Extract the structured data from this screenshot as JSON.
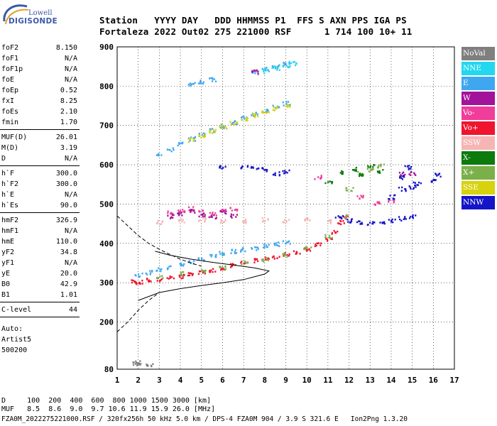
{
  "logo": {
    "line1": "Lowell",
    "line2": "DIGISONDE"
  },
  "header": {
    "row1": [
      "Station",
      "YYYY",
      "DAY",
      "DDD",
      "HHMMSS",
      "P1",
      "FFS",
      "S",
      "AXN",
      "PPS",
      "IGA",
      "PS"
    ],
    "row2": [
      "Fortaleza",
      "2022",
      "Out02",
      "275",
      "221000",
      "RSF",
      "1",
      "714",
      "100",
      "10+",
      "11"
    ]
  },
  "params": {
    "group1": [
      {
        "label": "foF2",
        "value": "8.150"
      },
      {
        "label": "foF1",
        "value": "N/A"
      },
      {
        "label": "foF1p",
        "value": "N/A"
      },
      {
        "label": "foE",
        "value": "N/A"
      },
      {
        "label": "foEp",
        "value": "0.52"
      },
      {
        "label": "fxI",
        "value": "8.25"
      },
      {
        "label": "foEs",
        "value": "2.10"
      },
      {
        "label": "fmin",
        "value": "1.70"
      }
    ],
    "group2": [
      {
        "label": "MUF(D)",
        "value": "26.01"
      },
      {
        "label": "M(D)",
        "value": "3.19"
      },
      {
        "label": "D",
        "value": "N/A"
      }
    ],
    "group3": [
      {
        "label": "h`F",
        "value": "300.0"
      },
      {
        "label": "h`F2",
        "value": "300.0"
      },
      {
        "label": "h`E",
        "value": "N/A"
      },
      {
        "label": "h`Es",
        "value": "90.0"
      }
    ],
    "group4": [
      {
        "label": "hmF2",
        "value": "326.9"
      },
      {
        "label": "hmF1",
        "value": "N/A"
      },
      {
        "label": "hmE",
        "value": "110.0"
      },
      {
        "label": "yF2",
        "value": "34.8"
      },
      {
        "label": "yF1",
        "value": "N/A"
      },
      {
        "label": "yE",
        "value": "20.0"
      },
      {
        "label": "B0",
        "value": "42.9"
      },
      {
        "label": "B1",
        "value": "1.01"
      }
    ],
    "group5": [
      {
        "label": "C-level",
        "value": "44"
      }
    ],
    "auto": [
      "Auto:",
      "Artist5",
      "500200"
    ]
  },
  "legend": [
    {
      "label": "NoVal",
      "color": "#7f7f7f"
    },
    {
      "label": "NNE",
      "color": "#22d8f0"
    },
    {
      "label": "E",
      "color": "#3fa7f0"
    },
    {
      "label": "W",
      "color": "#a3129a"
    },
    {
      "label": "Vo-",
      "color": "#f03c9a"
    },
    {
      "label": "Vo+",
      "color": "#f0142e"
    },
    {
      "label": "SSW",
      "color": "#f5b5b5"
    },
    {
      "label": "X-",
      "color": "#0c7a0c"
    },
    {
      "label": "X+",
      "color": "#7ab04a"
    },
    {
      "label": "SSE",
      "color": "#d7d20c"
    },
    {
      "label": "NNW",
      "color": "#1414c8"
    }
  ],
  "footer": {
    "line1": "D     100  200  400  600  800 1000 1500 3000 [km]",
    "line2": "MUF   8.5  8.6  9.0  9.7 10.6 11.9 15.9 26.0 [MHz]",
    "line3": "FZA0M_2022275221000.RSF / 320fx256h 50 kHz 5.0 km / DPS-4 FZA0M 904 / 3.9 S 321.6 E   Ion2Png 1.3.20"
  },
  "chart_data": {
    "type": "scatter",
    "xlim": [
      1,
      17
    ],
    "ylim": [
      80,
      900
    ],
    "x_ticks": [
      1,
      2,
      3,
      4,
      5,
      6,
      7,
      8,
      9,
      10,
      11,
      12,
      13,
      14,
      15,
      16,
      17
    ],
    "y_ticks": [
      80,
      200,
      300,
      400,
      500,
      600,
      700,
      800,
      900
    ],
    "grid": true,
    "series": [
      {
        "name": "Vo+",
        "color": "#f0142e",
        "points": [
          [
            1.8,
            305
          ],
          [
            2.0,
            303
          ],
          [
            2.5,
            308
          ],
          [
            3.0,
            310
          ],
          [
            3.5,
            315
          ],
          [
            4.0,
            318
          ],
          [
            4.5,
            322
          ],
          [
            5.0,
            328
          ],
          [
            5.5,
            334
          ],
          [
            6.0,
            340
          ],
          [
            6.5,
            346
          ],
          [
            7.0,
            352
          ],
          [
            7.5,
            358
          ],
          [
            8.0,
            362
          ],
          [
            8.5,
            368
          ],
          [
            9.0,
            374
          ],
          [
            9.5,
            380
          ],
          [
            10.0,
            388
          ],
          [
            10.5,
            398
          ],
          [
            11.0,
            412
          ],
          [
            11.3,
            430
          ],
          [
            11.6,
            455
          ],
          [
            11.8,
            470
          ]
        ]
      },
      {
        "name": "E",
        "color": "#3fa7f0",
        "points": [
          [
            2.0,
            322
          ],
          [
            2.5,
            328
          ],
          [
            3.0,
            335
          ],
          [
            3.5,
            340
          ],
          [
            4.0,
            348
          ],
          [
            4.5,
            355
          ],
          [
            5.0,
            362
          ],
          [
            5.5,
            370
          ],
          [
            6.0,
            376
          ],
          [
            6.5,
            382
          ],
          [
            7.0,
            386
          ],
          [
            7.5,
            390
          ],
          [
            8.0,
            395
          ],
          [
            8.5,
            400
          ],
          [
            9.0,
            405
          ],
          [
            3.0,
            630
          ],
          [
            3.5,
            640
          ],
          [
            4.0,
            655
          ],
          [
            4.5,
            668
          ],
          [
            5.0,
            678
          ],
          [
            5.5,
            690
          ],
          [
            6.0,
            700
          ],
          [
            6.5,
            710
          ],
          [
            7.0,
            720
          ],
          [
            7.5,
            730
          ],
          [
            8.0,
            740
          ],
          [
            8.5,
            750
          ],
          [
            9.0,
            758
          ],
          [
            4.5,
            808
          ],
          [
            5.0,
            812
          ],
          [
            5.5,
            818
          ],
          [
            7.5,
            838
          ],
          [
            8.0,
            845
          ],
          [
            8.5,
            852
          ],
          [
            9.0,
            858
          ]
        ]
      },
      {
        "name": "NNE",
        "color": "#22d8f0",
        "points": [
          [
            8.0,
            840
          ],
          [
            8.5,
            848
          ],
          [
            9.0,
            855
          ],
          [
            9.3,
            860
          ]
        ]
      },
      {
        "name": "SSE",
        "color": "#d7d20c",
        "points": [
          [
            4.5,
            665
          ],
          [
            5.0,
            675
          ],
          [
            5.5,
            688
          ],
          [
            6.0,
            698
          ],
          [
            6.5,
            708
          ],
          [
            7.0,
            718
          ],
          [
            7.5,
            728
          ],
          [
            8.0,
            738
          ],
          [
            8.5,
            745
          ],
          [
            9.0,
            752
          ]
        ]
      },
      {
        "name": "X+",
        "color": "#7ab04a",
        "points": [
          [
            3.0,
            318
          ],
          [
            4.0,
            325
          ],
          [
            5.0,
            332
          ],
          [
            6.0,
            340
          ],
          [
            7.0,
            352
          ],
          [
            8.0,
            360
          ],
          [
            9.0,
            372
          ],
          [
            10.0,
            392
          ],
          [
            11.0,
            420
          ],
          [
            11.7,
            470
          ],
          [
            12.0,
            540
          ],
          [
            12.5,
            580
          ],
          [
            13.0,
            590
          ],
          [
            13.5,
            600
          ]
        ]
      },
      {
        "name": "X-",
        "color": "#0c7a0c",
        "points": [
          [
            11.0,
            560
          ],
          [
            11.7,
            582
          ],
          [
            12.2,
            590
          ],
          [
            12.6,
            575
          ],
          [
            13.0,
            600
          ],
          [
            13.4,
            585
          ]
        ]
      },
      {
        "name": "Vo-",
        "color": "#f03c9a",
        "points": [
          [
            3.5,
            480
          ],
          [
            4.0,
            485
          ],
          [
            4.5,
            490
          ],
          [
            5.0,
            482
          ],
          [
            5.5,
            478
          ],
          [
            6.0,
            488
          ],
          [
            6.5,
            490
          ],
          [
            10.5,
            570
          ],
          [
            12.5,
            520
          ],
          [
            13.3,
            505
          ],
          [
            14.0,
            510
          ]
        ]
      },
      {
        "name": "W",
        "color": "#a3129a",
        "points": [
          [
            3.5,
            470
          ],
          [
            4.0,
            478
          ],
          [
            4.5,
            485
          ],
          [
            5.0,
            475
          ],
          [
            5.5,
            470
          ],
          [
            6.0,
            480
          ],
          [
            6.5,
            472
          ],
          [
            7.5,
            838
          ],
          [
            14.5,
            578
          ],
          [
            15.0,
            580
          ]
        ]
      },
      {
        "name": "SSW",
        "color": "#f5b5b5",
        "points": [
          [
            3.0,
            455
          ],
          [
            4.0,
            460
          ],
          [
            5.0,
            462
          ],
          [
            6.0,
            460
          ],
          [
            7.0,
            458
          ],
          [
            8.0,
            462
          ],
          [
            9.0,
            460
          ],
          [
            10.0,
            462
          ],
          [
            11.0,
            458
          ]
        ]
      },
      {
        "name": "NNW",
        "color": "#1414c8",
        "points": [
          [
            6.0,
            595
          ],
          [
            7.0,
            598
          ],
          [
            7.5,
            595
          ],
          [
            8.0,
            590
          ],
          [
            8.5,
            580
          ],
          [
            9.0,
            585
          ],
          [
            11.5,
            470
          ],
          [
            12.0,
            460
          ],
          [
            12.5,
            455
          ],
          [
            13.0,
            452
          ],
          [
            13.5,
            455
          ],
          [
            14.0,
            460
          ],
          [
            14.5,
            465
          ],
          [
            15.0,
            470
          ],
          [
            14.0,
            520
          ],
          [
            14.5,
            540
          ],
          [
            15.0,
            545
          ],
          [
            14.5,
            570
          ],
          [
            15.2,
            555
          ],
          [
            16.0,
            560
          ],
          [
            16.2,
            575
          ],
          [
            14.8,
            595
          ]
        ]
      },
      {
        "name": "NoVal",
        "color": "#7f7f7f",
        "points": [
          [
            1.8,
            95
          ],
          [
            2.0,
            98
          ],
          [
            2.5,
            92
          ]
        ]
      }
    ],
    "curves": [
      {
        "style": "solid",
        "points": [
          [
            2.0,
            255
          ],
          [
            3.0,
            275
          ],
          [
            4.0,
            285
          ],
          [
            5.0,
            293
          ],
          [
            6.0,
            300
          ],
          [
            7.0,
            308
          ],
          [
            7.5,
            315
          ],
          [
            8.0,
            322
          ],
          [
            8.2,
            330
          ],
          [
            7.5,
            338
          ],
          [
            6.5,
            345
          ],
          [
            5.5,
            352
          ],
          [
            4.5,
            360
          ],
          [
            3.5,
            370
          ],
          [
            2.8,
            380
          ]
        ]
      },
      {
        "style": "dashed",
        "points": [
          [
            1.0,
            470
          ],
          [
            1.5,
            445
          ],
          [
            2.0,
            420
          ],
          [
            2.5,
            400
          ],
          [
            3.0,
            385
          ],
          [
            3.5,
            372
          ],
          [
            4.0,
            360
          ],
          [
            4.5,
            350
          ],
          [
            5.0,
            342
          ]
        ]
      },
      {
        "style": "dashed",
        "points": [
          [
            1.0,
            175
          ],
          [
            1.5,
            200
          ],
          [
            2.0,
            230
          ],
          [
            2.5,
            255
          ],
          [
            3.0,
            275
          ]
        ]
      }
    ]
  }
}
